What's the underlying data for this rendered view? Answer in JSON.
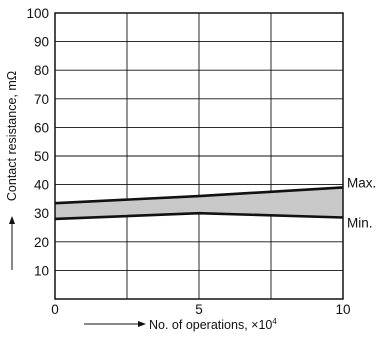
{
  "chart_data": {
    "type": "area",
    "xlabel_prefix": "No. of operations, ×10",
    "xlabel_exponent": "4",
    "ylabel": "Contact resistance, mΩ",
    "xlim": [
      0,
      10
    ],
    "ylim": [
      0,
      100
    ],
    "x_ticks": [
      "0",
      "5",
      "10"
    ],
    "y_ticks": [
      "10",
      "20",
      "30",
      "40",
      "50",
      "60",
      "70",
      "80",
      "90",
      "100"
    ],
    "x_tick_values": [
      0,
      5,
      10
    ],
    "y_tick_values": [
      10,
      20,
      30,
      40,
      50,
      60,
      70,
      80,
      90,
      100
    ],
    "x_gridlines": [
      2.5,
      5,
      7.5
    ],
    "y_gridlines": [
      10,
      20,
      30,
      40,
      50,
      60,
      70,
      80,
      90
    ],
    "grid": true,
    "series": [
      {
        "name": "Max.",
        "x": [
          0,
          5,
          10
        ],
        "values": [
          33.5,
          36,
          39
        ]
      },
      {
        "name": "Min.",
        "x": [
          0,
          5,
          10
        ],
        "values": [
          28,
          30,
          28.5
        ]
      }
    ],
    "band_fill": "#c8c8c8",
    "line_color": "#111111"
  }
}
